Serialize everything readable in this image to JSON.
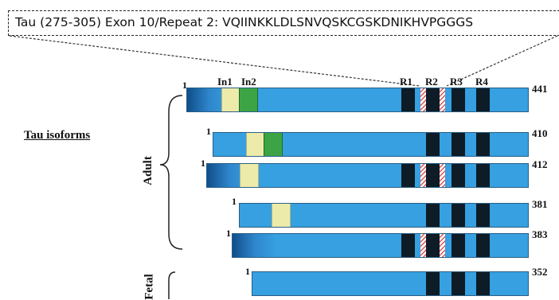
{
  "sequence_box": {
    "text": "Tau (275-305) Exon 10/Repeat 2: VQIINKKLDLSNVQSKCGSKDNIKHVPGGGS"
  },
  "section_title": "Tau isoforms",
  "groups": {
    "adult": "Adult",
    "fetal": "Fetal"
  },
  "domain_labels": {
    "in1": "In1",
    "in2": "In2",
    "r1": "R1",
    "r2": "R2",
    "r3": "R3",
    "r4": "R4"
  },
  "isoforms": [
    {
      "length": "441",
      "start": "1",
      "in1": true,
      "in2": true,
      "r2": true,
      "group": "adult"
    },
    {
      "length": "410",
      "start": "1",
      "in1": true,
      "in2": true,
      "r2": false,
      "group": "adult"
    },
    {
      "length": "412",
      "start": "1",
      "in1": true,
      "in2": false,
      "r2": true,
      "group": "adult"
    },
    {
      "length": "381",
      "start": "1",
      "in1": true,
      "in2": false,
      "r2": false,
      "group": "adult"
    },
    {
      "length": "383",
      "start": "1",
      "in1": false,
      "in2": false,
      "r2": true,
      "group": "adult"
    },
    {
      "length": "352",
      "start": "1",
      "in1": false,
      "in2": false,
      "r2": false,
      "group": "fetal"
    }
  ],
  "colors": {
    "bar": "#36a0e0",
    "bar_dark_end": "#0f4e8a",
    "in1": "#ecebaa",
    "in2": "#3ca444",
    "repeat": "#0d1c26",
    "r2_hatch": "#e05050"
  }
}
